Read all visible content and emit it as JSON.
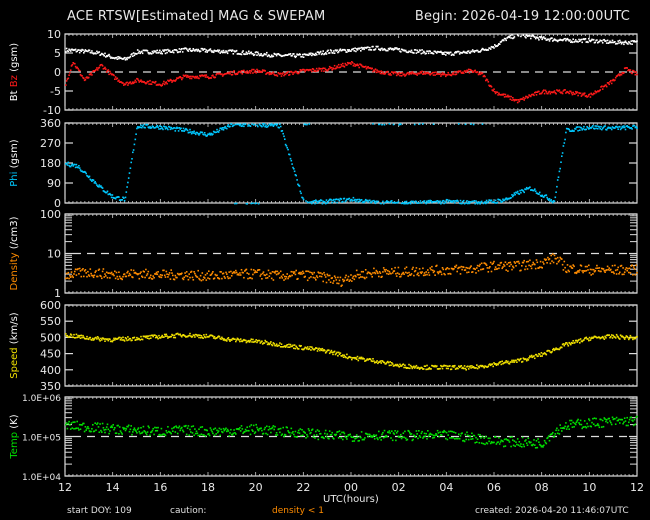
{
  "header": {
    "title": "ACE RTSW[Estimated] MAG & SWEPAM",
    "begin": "Begin: 2026-04-19 12:00:00UTC"
  },
  "footer": {
    "start_doy": "start DOY: 109",
    "caution": "caution:",
    "caution_note": "density < 1",
    "caution_color": "#ff8c00",
    "created": "created: 2026-04-20 11:46:07UTC",
    "xlabel": "UTC(hours)"
  },
  "x_axis": {
    "ticks": [
      "12",
      "14",
      "16",
      "18",
      "20",
      "22",
      "00",
      "02",
      "04",
      "06",
      "08",
      "10",
      "12"
    ],
    "range_hours": [
      0,
      24
    ]
  },
  "chart_data": [
    {
      "type": "scatter",
      "title": "Bt / Bz (gsm)",
      "ylabel": "Bt Bz (gsm)",
      "ylim": [
        -10,
        10
      ],
      "yticks": [
        "10",
        "5",
        "0",
        "-5",
        "-10"
      ],
      "scale": "linear",
      "dashed_ref": 0,
      "series": [
        {
          "name": "Bt",
          "color": "#ffffff",
          "x": [
            0,
            0.5,
            1,
            1.5,
            2,
            2.5,
            3,
            4,
            5,
            6,
            7,
            8,
            9,
            10,
            11,
            12,
            13,
            14,
            15,
            16,
            17,
            17.5,
            18,
            18.5,
            19,
            19.5,
            20,
            21,
            22,
            23,
            24
          ],
          "y": [
            6,
            5.8,
            5.5,
            5,
            4,
            3.5,
            5.5,
            5.5,
            6,
            5.8,
            5.5,
            5,
            4.5,
            4.5,
            5.5,
            6,
            6.5,
            6,
            5.5,
            5,
            5.5,
            6,
            7,
            9,
            10,
            9.5,
            9,
            8.5,
            8.5,
            8,
            8
          ]
        },
        {
          "name": "Bz",
          "color": "#ff1a1a",
          "x": [
            0,
            0.3,
            0.8,
            1.5,
            2,
            2.5,
            3,
            4,
            5,
            6,
            7,
            8,
            9,
            10,
            11,
            12,
            12.5,
            13,
            14,
            15,
            16,
            16.5,
            17,
            17.5,
            18,
            19,
            19.5,
            20,
            21,
            22,
            23,
            23.5,
            24
          ],
          "y": [
            -3,
            3,
            -2,
            2,
            -1,
            -3,
            -2,
            -3,
            -1,
            -1,
            0,
            0.5,
            -0.5,
            0.5,
            1,
            2.5,
            1.5,
            0.5,
            -0.5,
            0,
            -0.5,
            0,
            0.5,
            -0.5,
            -5,
            -7.5,
            -6,
            -5,
            -5,
            -6,
            -2,
            1,
            -0.5
          ]
        }
      ]
    },
    {
      "type": "scatter",
      "title": "Phi (gsm)",
      "ylabel": "Phi (gsm)",
      "ylim": [
        0,
        360
      ],
      "yticks": [
        "360",
        "270",
        "180",
        "90",
        "0"
      ],
      "scale": "linear",
      "series": [
        {
          "name": "Phi",
          "color": "#00c8ff",
          "x": [
            0,
            0.5,
            1,
            1.5,
            2,
            2.5,
            3,
            4,
            5,
            6,
            7,
            8,
            9,
            10,
            11,
            12,
            13,
            14,
            15,
            16,
            17,
            18,
            18.5,
            19,
            19.5,
            20,
            20.5,
            21,
            22,
            23,
            24
          ],
          "y": [
            180,
            170,
            120,
            70,
            30,
            20,
            350,
            345,
            330,
            310,
            355,
            355,
            350,
            5,
            10,
            20,
            5,
            5,
            5,
            10,
            5,
            10,
            20,
            50,
            70,
            40,
            10,
            330,
            345,
            340,
            345
          ]
        }
      ]
    },
    {
      "type": "scatter",
      "title": "Density (/cm3)",
      "ylabel": "Density (/cm3)",
      "ylim": [
        1,
        100
      ],
      "yticks": [
        "100",
        "10",
        "1"
      ],
      "scale": "log",
      "dashed_ref": 10,
      "series": [
        {
          "name": "Density",
          "color": "#ff8c00",
          "x": [
            0,
            1,
            2,
            3,
            4,
            5,
            6,
            7,
            8,
            9,
            10,
            11,
            11.5,
            12,
            13,
            14,
            15,
            16,
            17,
            18,
            19,
            20,
            20.5,
            21,
            22,
            23,
            24
          ],
          "y": [
            3,
            3.5,
            3,
            3.2,
            3,
            3,
            2.8,
            3,
            3.2,
            2.8,
            3,
            2.5,
            2,
            2.8,
            3.5,
            3.5,
            3.8,
            4,
            4.2,
            5,
            5,
            6,
            8,
            4.5,
            4,
            4,
            4
          ]
        }
      ]
    },
    {
      "type": "scatter",
      "title": "Speed (km/s)",
      "ylabel": "Speed (km/s)",
      "ylim": [
        350,
        600
      ],
      "yticks": [
        "600",
        "550",
        "500",
        "450",
        "400",
        "350"
      ],
      "scale": "linear",
      "series": [
        {
          "name": "Speed",
          "color": "#f0e000",
          "x": [
            0,
            1,
            2,
            3,
            4,
            5,
            6,
            7,
            8,
            9,
            10,
            11,
            12,
            13,
            14,
            15,
            16,
            17,
            18,
            19,
            19.5,
            20,
            21,
            22,
            23,
            24
          ],
          "y": [
            510,
            500,
            495,
            500,
            505,
            510,
            505,
            495,
            490,
            480,
            470,
            460,
            440,
            430,
            415,
            410,
            410,
            408,
            420,
            430,
            440,
            450,
            480,
            500,
            505,
            500
          ]
        }
      ]
    },
    {
      "type": "scatter",
      "title": "Temp (K)",
      "ylabel": "Temp (K)",
      "ylim": [
        10000,
        1000000
      ],
      "yticks": [
        "1.0E+06",
        "1.0E+05",
        "1.0E+04"
      ],
      "scale": "log",
      "dashed_ref": 100000,
      "series": [
        {
          "name": "Temp",
          "color": "#00e000",
          "x": [
            0,
            1,
            2,
            3,
            4,
            5,
            6,
            7,
            8,
            9,
            10,
            11,
            12,
            13,
            14,
            15,
            16,
            17,
            18,
            19,
            20,
            21,
            22,
            23,
            24
          ],
          "y": [
            200000,
            180000,
            160000,
            150000,
            140000,
            150000,
            140000,
            145000,
            160000,
            140000,
            130000,
            110000,
            105000,
            115000,
            110000,
            110000,
            110000,
            100000,
            80000,
            75000,
            70000,
            200000,
            230000,
            250000,
            260000
          ]
        }
      ]
    }
  ]
}
